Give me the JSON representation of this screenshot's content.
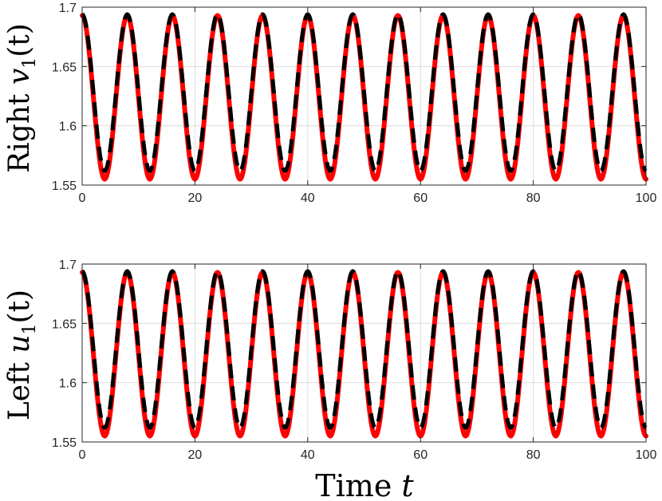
{
  "chart_data": [
    {
      "type": "line",
      "ylabel_text": "Right ",
      "ylabel_var": "v",
      "ylabel_sub": "1",
      "ylabel_arg": "(t)",
      "xlabel": "",
      "xlim": [
        0,
        100
      ],
      "ylim": [
        1.55,
        1.7
      ],
      "xticks": [
        0,
        20,
        40,
        60,
        80,
        100
      ],
      "yticks": [
        1.55,
        1.6,
        1.65,
        1.7
      ],
      "xtick_labels": [
        "0",
        "20",
        "40",
        "60",
        "80",
        "100"
      ],
      "ytick_labels": [
        "1.55",
        "1.6",
        "1.65",
        "1.7"
      ],
      "grid": true,
      "series": [
        {
          "color": "#ff0000",
          "style": "solid",
          "x": [
            0,
            4,
            8,
            12,
            16,
            20,
            24,
            28,
            32,
            36,
            40,
            44,
            48,
            52,
            56,
            60,
            64,
            68,
            72,
            76,
            80,
            84,
            88,
            92,
            96,
            100
          ],
          "y": [
            1.693,
            1.555,
            1.693,
            1.555,
            1.693,
            1.555,
            1.693,
            1.555,
            1.693,
            1.555,
            1.693,
            1.555,
            1.693,
            1.555,
            1.693,
            1.555,
            1.693,
            1.555,
            1.693,
            1.555,
            1.693,
            1.555,
            1.693,
            1.555,
            1.693,
            1.555
          ]
        },
        {
          "color": "#000000",
          "style": "dashed",
          "x": [
            0,
            4,
            8,
            12,
            16,
            20,
            24,
            28,
            32,
            36,
            40,
            44,
            48,
            52,
            56,
            60,
            64,
            68,
            72,
            76,
            80,
            84,
            88,
            92,
            96,
            100
          ],
          "y": [
            1.694,
            1.562,
            1.694,
            1.562,
            1.694,
            1.562,
            1.694,
            1.562,
            1.694,
            1.562,
            1.694,
            1.562,
            1.694,
            1.562,
            1.694,
            1.562,
            1.694,
            1.562,
            1.694,
            1.562,
            1.694,
            1.562,
            1.694,
            1.562,
            1.694,
            1.562
          ]
        }
      ]
    },
    {
      "type": "line",
      "ylabel_text": "Left ",
      "ylabel_var": "u",
      "ylabel_sub": "1",
      "ylabel_arg": "(t)",
      "xlabel_text": "Time ",
      "xlabel_var": "t",
      "xlim": [
        0,
        100
      ],
      "ylim": [
        1.55,
        1.7
      ],
      "xticks": [
        0,
        20,
        40,
        60,
        80,
        100
      ],
      "yticks": [
        1.55,
        1.6,
        1.65,
        1.7
      ],
      "xtick_labels": [
        "0",
        "20",
        "40",
        "60",
        "80",
        "100"
      ],
      "ytick_labels": [
        "1.55",
        "1.6",
        "1.65",
        "1.7"
      ],
      "grid": true,
      "series": [
        {
          "color": "#ff0000",
          "style": "solid",
          "x": [
            0,
            4,
            8,
            12,
            16,
            20,
            24,
            28,
            32,
            36,
            40,
            44,
            48,
            52,
            56,
            60,
            64,
            68,
            72,
            76,
            80,
            84,
            88,
            92,
            96,
            100
          ],
          "y": [
            1.693,
            1.555,
            1.693,
            1.555,
            1.693,
            1.555,
            1.693,
            1.555,
            1.693,
            1.555,
            1.693,
            1.555,
            1.693,
            1.555,
            1.693,
            1.555,
            1.693,
            1.555,
            1.693,
            1.555,
            1.693,
            1.555,
            1.693,
            1.555,
            1.693,
            1.555
          ]
        },
        {
          "color": "#000000",
          "style": "dashed",
          "x": [
            0,
            4,
            8,
            12,
            16,
            20,
            24,
            28,
            32,
            36,
            40,
            44,
            48,
            52,
            56,
            60,
            64,
            68,
            72,
            76,
            80,
            84,
            88,
            92,
            96,
            100
          ],
          "y": [
            1.694,
            1.562,
            1.694,
            1.562,
            1.694,
            1.562,
            1.694,
            1.562,
            1.694,
            1.562,
            1.694,
            1.562,
            1.694,
            1.562,
            1.694,
            1.562,
            1.694,
            1.562,
            1.694,
            1.562,
            1.694,
            1.562,
            1.694,
            1.562,
            1.694,
            1.562
          ]
        }
      ]
    }
  ]
}
